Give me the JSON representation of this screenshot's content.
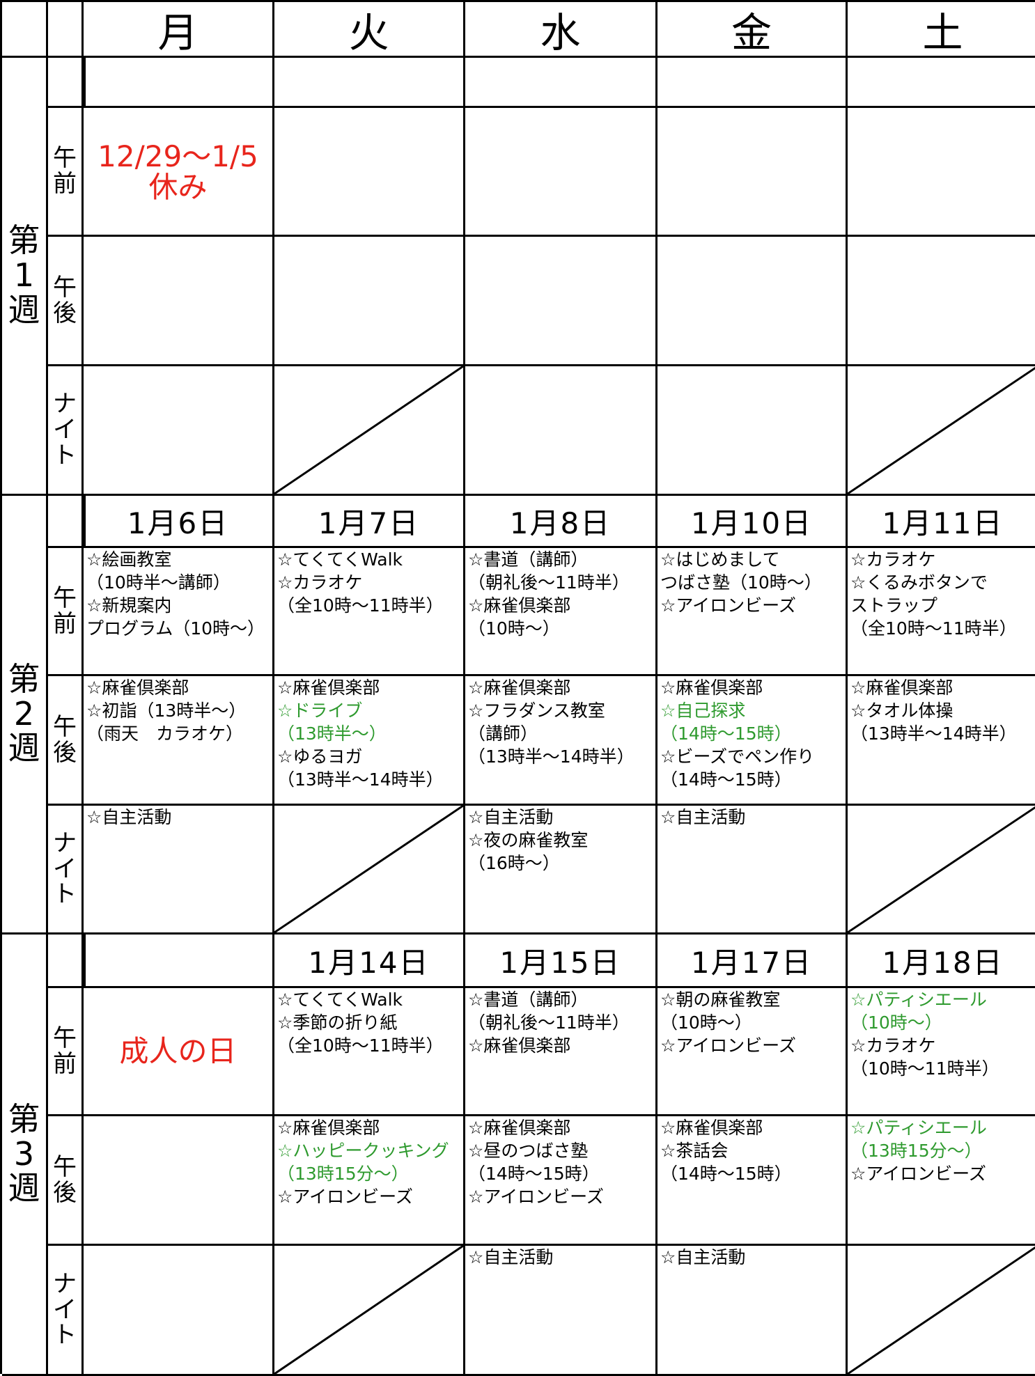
{
  "header": {
    "days": [
      "月",
      "火",
      "水",
      "金",
      "土"
    ]
  },
  "weeks": [
    {
      "label": "第1週",
      "dates": [
        null,
        null,
        null,
        null,
        null
      ],
      "slots": [
        {
          "label": "午前",
          "cells": [
            {
              "align": "center",
              "color": "#e8251c",
              "lines": [
                "12/29～1/5",
                "休み"
              ]
            },
            {},
            {},
            {},
            {}
          ]
        },
        {
          "label": "午後",
          "cells": [
            {},
            {},
            {},
            {},
            {}
          ]
        },
        {
          "label": "ナイト",
          "cells": [
            {},
            {
              "crossed": true
            },
            {},
            {},
            {
              "crossed": true
            }
          ]
        }
      ]
    },
    {
      "label": "第2週",
      "dates": [
        "1月6日",
        "1月7日",
        "1月8日",
        "1月10日",
        "1月11日"
      ],
      "slots": [
        {
          "label": "午前",
          "cells": [
            {
              "lines": [
                "☆絵画教室",
                "（10時半～講師）",
                "☆新規案内",
                "プログラム（10時～）"
              ]
            },
            {
              "lines": [
                "☆てくてくWalk",
                "☆カラオケ",
                "（全10時～11時半）"
              ]
            },
            {
              "lines": [
                "☆書道（講師）",
                "（朝礼後～11時半）",
                "☆麻雀倶楽部",
                "（10時～）"
              ]
            },
            {
              "lines": [
                "☆はじめまして",
                "つばさ塾（10時～）",
                "☆アイロンビーズ"
              ]
            },
            {
              "lines": [
                "☆カラオケ",
                "☆くるみボタンで",
                "ストラップ",
                "（全10時～11時半）"
              ]
            }
          ]
        },
        {
          "label": "午後",
          "cells": [
            {
              "lines": [
                "☆麻雀倶楽部",
                "☆初詣（13時半～）",
                "（雨天　カラオケ）"
              ]
            },
            {
              "lines": [
                "☆麻雀倶楽部",
                {
                  "text": "☆ドライブ",
                  "color": "#2e9a2e"
                },
                {
                  "text": "（13時半～）",
                  "color": "#2e9a2e"
                },
                "☆ゆるヨガ",
                "（13時半～14時半）"
              ]
            },
            {
              "lines": [
                "☆麻雀倶楽部",
                "☆フラダンス教室",
                "（講師）",
                "（13時半～14時半）"
              ]
            },
            {
              "lines": [
                "☆麻雀倶楽部",
                {
                  "text": "☆自己探求",
                  "color": "#2e9a2e"
                },
                {
                  "text": "（14時～15時）",
                  "color": "#2e9a2e"
                },
                "☆ビーズでペン作り",
                "（14時～15時）"
              ]
            },
            {
              "lines": [
                "☆麻雀倶楽部",
                "☆タオル体操",
                "（13時半～14時半）"
              ]
            }
          ]
        },
        {
          "label": "ナイト",
          "cells": [
            {
              "lines": [
                "☆自主活動"
              ]
            },
            {
              "crossed": true
            },
            {
              "lines": [
                "☆自主活動",
                "☆夜の麻雀教室",
                "（16時～）"
              ]
            },
            {
              "lines": [
                "☆自主活動"
              ]
            },
            {
              "crossed": true
            }
          ]
        }
      ]
    },
    {
      "label": "第3週",
      "dates": [
        null,
        "1月14日",
        "1月15日",
        "1月17日",
        "1月18日"
      ],
      "slots": [
        {
          "label": "午前",
          "cells": [
            {
              "align": "middle",
              "color": "#e8251c",
              "lines": [
                "成人の日"
              ]
            },
            {
              "lines": [
                "☆てくてくWalk",
                "☆季節の折り紙",
                "（全10時～11時半）"
              ]
            },
            {
              "lines": [
                "☆書道（講師）",
                "（朝礼後～11時半）",
                "☆麻雀倶楽部"
              ]
            },
            {
              "lines": [
                "☆朝の麻雀教室",
                "（10時～）",
                "☆アイロンビーズ"
              ]
            },
            {
              "lines": [
                {
                  "text": "☆パティシエール",
                  "color": "#2e9a2e"
                },
                {
                  "text": "（10時～）",
                  "color": "#2e9a2e"
                },
                "☆カラオケ",
                "（10時～11時半）"
              ]
            }
          ]
        },
        {
          "label": "午後",
          "cells": [
            {},
            {
              "lines": [
                "☆麻雀倶楽部",
                {
                  "text": "☆ハッピークッキング",
                  "color": "#2e9a2e"
                },
                {
                  "text": "（13時15分～）",
                  "color": "#2e9a2e"
                },
                "☆アイロンビーズ"
              ]
            },
            {
              "lines": [
                "☆麻雀倶楽部",
                "☆昼のつばさ塾",
                "（14時～15時）",
                "☆アイロンビーズ"
              ]
            },
            {
              "lines": [
                "☆麻雀倶楽部",
                "☆茶話会",
                "（14時～15時）"
              ]
            },
            {
              "lines": [
                {
                  "text": "☆パティシエール",
                  "color": "#2e9a2e"
                },
                {
                  "text": "（13時15分～）",
                  "color": "#2e9a2e"
                },
                "☆アイロンビーズ"
              ]
            }
          ]
        },
        {
          "label": "ナイト",
          "cells": [
            {},
            {
              "crossed": true
            },
            {
              "lines": [
                "☆自主活動"
              ]
            },
            {
              "lines": [
                "☆自主活動"
              ]
            },
            {
              "crossed": true
            }
          ]
        }
      ]
    }
  ]
}
